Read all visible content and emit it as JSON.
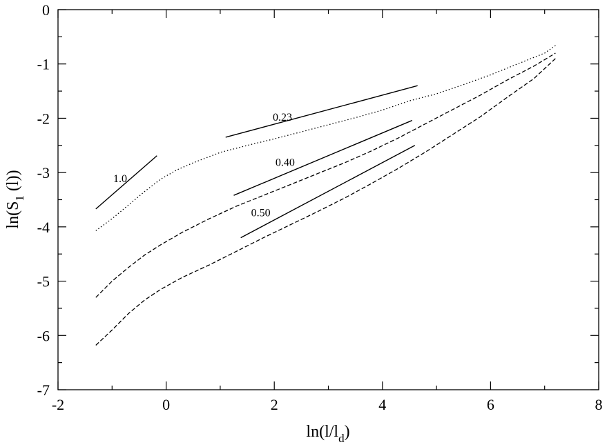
{
  "chart_data": {
    "type": "line",
    "xlabel": {
      "main": "ln(l/l",
      "sub": "d",
      "tail": ")"
    },
    "ylabel": {
      "main": "ln(S",
      "sub": "1",
      "tail": " (l))"
    },
    "xlim": [
      -2,
      8
    ],
    "ylim": [
      -7,
      0
    ],
    "x_ticks": [
      -2,
      0,
      2,
      4,
      6,
      8
    ],
    "y_ticks": [
      -7,
      -6,
      -5,
      -4,
      -3,
      -2,
      -1,
      0
    ],
    "x_tick_labels": [
      "-2",
      "0",
      "2",
      "4",
      "6",
      "8"
    ],
    "y_tick_labels": [
      "-7",
      "-6",
      "-5",
      "-4",
      "-3",
      "-2",
      "-1",
      "0"
    ],
    "grid": false,
    "series": [
      {
        "style": "dotted",
        "points": [
          [
            -1.3,
            -4.07
          ],
          [
            -1.0,
            -3.85
          ],
          [
            -0.7,
            -3.6
          ],
          [
            -0.4,
            -3.35
          ],
          [
            -0.1,
            -3.12
          ],
          [
            0.2,
            -2.95
          ],
          [
            0.5,
            -2.82
          ],
          [
            1.0,
            -2.63
          ],
          [
            1.5,
            -2.5
          ],
          [
            2.0,
            -2.38
          ],
          [
            2.5,
            -2.25
          ],
          [
            3.0,
            -2.12
          ],
          [
            3.5,
            -1.99
          ],
          [
            4.0,
            -1.85
          ],
          [
            4.5,
            -1.68
          ],
          [
            5.0,
            -1.55
          ],
          [
            5.5,
            -1.38
          ],
          [
            6.0,
            -1.2
          ],
          [
            6.5,
            -1.0
          ],
          [
            7.0,
            -0.8
          ],
          [
            7.2,
            -0.66
          ]
        ]
      },
      {
        "style": "dashed",
        "points": [
          [
            -1.3,
            -5.3
          ],
          [
            -1.0,
            -5.0
          ],
          [
            -0.7,
            -4.75
          ],
          [
            -0.4,
            -4.52
          ],
          [
            -0.1,
            -4.33
          ],
          [
            0.3,
            -4.1
          ],
          [
            0.8,
            -3.85
          ],
          [
            1.3,
            -3.62
          ],
          [
            1.8,
            -3.42
          ],
          [
            2.3,
            -3.22
          ],
          [
            2.8,
            -3.02
          ],
          [
            3.3,
            -2.82
          ],
          [
            3.8,
            -2.6
          ],
          [
            4.3,
            -2.36
          ],
          [
            4.8,
            -2.1
          ],
          [
            5.3,
            -1.84
          ],
          [
            5.8,
            -1.58
          ],
          [
            6.3,
            -1.3
          ],
          [
            6.8,
            -1.04
          ],
          [
            7.2,
            -0.8
          ]
        ]
      },
      {
        "style": "dashed",
        "points": [
          [
            -1.3,
            -6.18
          ],
          [
            -1.0,
            -5.9
          ],
          [
            -0.7,
            -5.6
          ],
          [
            -0.4,
            -5.35
          ],
          [
            -0.1,
            -5.15
          ],
          [
            0.3,
            -4.93
          ],
          [
            0.8,
            -4.7
          ],
          [
            1.3,
            -4.45
          ],
          [
            1.8,
            -4.2
          ],
          [
            2.3,
            -3.96
          ],
          [
            2.8,
            -3.72
          ],
          [
            3.3,
            -3.47
          ],
          [
            3.8,
            -3.2
          ],
          [
            4.3,
            -2.92
          ],
          [
            4.8,
            -2.62
          ],
          [
            5.3,
            -2.3
          ],
          [
            5.8,
            -1.98
          ],
          [
            6.3,
            -1.62
          ],
          [
            6.8,
            -1.27
          ],
          [
            7.2,
            -0.9
          ]
        ]
      }
    ],
    "reference_lines": [
      {
        "label": "1.0",
        "from": [
          -1.3,
          -3.67
        ],
        "to": [
          -0.17,
          -2.69
        ],
        "label_at": [
          -0.85,
          -3.1
        ]
      },
      {
        "label": "0.23",
        "from": [
          1.1,
          -2.35
        ],
        "to": [
          4.65,
          -1.4
        ],
        "label_at": [
          2.15,
          -1.97
        ]
      },
      {
        "label": "0.40",
        "from": [
          1.25,
          -3.42
        ],
        "to": [
          4.55,
          -2.04
        ],
        "label_at": [
          2.2,
          -2.8
        ]
      },
      {
        "label": "0.50",
        "from": [
          1.38,
          -4.2
        ],
        "to": [
          4.6,
          -2.5
        ],
        "label_at": [
          1.75,
          -3.73
        ]
      }
    ]
  }
}
